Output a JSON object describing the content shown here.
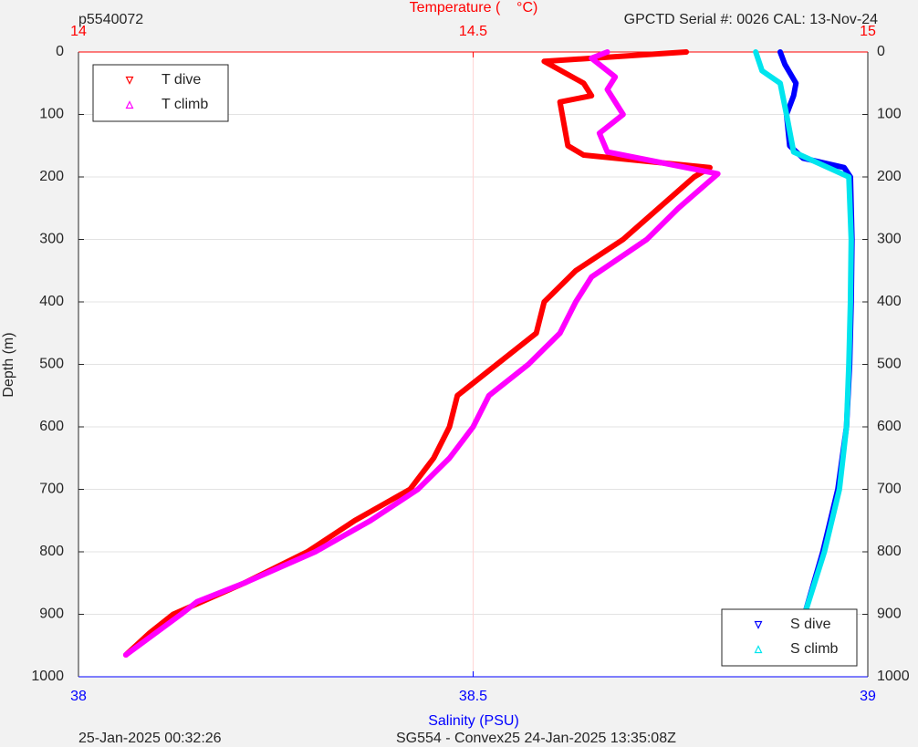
{
  "chart_data": {
    "type": "line",
    "title_left": "p5540072",
    "title_right": "GPCTD Serial #: 0026 CAL: 13-Nov-24",
    "xlabel_top": "Temperature (    °C)",
    "xlabel_bottom": "Salinity (PSU)",
    "ylabel": "Depth (m)",
    "footer_left": "25-Jan-2025 00:32:26",
    "footer_right": "SG554 - Convex25 24-Jan-2025 13:35:08Z",
    "ylim": [
      0,
      1000
    ],
    "y_reversed": true,
    "yticks": [
      0,
      100,
      200,
      300,
      400,
      500,
      600,
      700,
      800,
      900,
      1000
    ],
    "xlim": [
      14,
      15
    ],
    "xticks": [
      14,
      14.5,
      15
    ],
    "x_color": "#ff0000",
    "x2lim": [
      38,
      39
    ],
    "x2ticks": [
      38,
      38.5,
      39
    ],
    "x2_color": "#0000ff",
    "grid": true,
    "series": [
      {
        "name": "T dive",
        "color": "#ff0000",
        "marker": "down",
        "axis": "x",
        "legend": "top-left",
        "x": [
          14.77,
          14.59,
          14.64,
          14.65,
          14.61,
          14.62,
          14.64,
          14.8,
          14.78,
          14.69,
          14.63,
          14.59,
          14.58,
          14.53,
          14.48,
          14.47,
          14.45,
          14.42,
          14.35,
          14.29,
          14.21,
          14.12,
          14.09,
          14.06
        ],
        "y": [
          0,
          15,
          50,
          70,
          80,
          150,
          165,
          185,
          200,
          300,
          350,
          400,
          450,
          500,
          550,
          600,
          650,
          700,
          750,
          800,
          850,
          900,
          930,
          965
        ]
      },
      {
        "name": "T climb",
        "color": "#ff00ff",
        "marker": "up",
        "axis": "x",
        "legend": "top-left",
        "x": [
          14.67,
          14.65,
          14.68,
          14.67,
          14.69,
          14.66,
          14.67,
          14.73,
          14.81,
          14.76,
          14.72,
          14.65,
          14.63,
          14.61,
          14.57,
          14.52,
          14.5,
          14.47,
          14.43,
          14.37,
          14.3,
          14.21,
          14.15,
          14.13,
          14.06
        ],
        "y": [
          0,
          10,
          40,
          60,
          100,
          130,
          160,
          175,
          195,
          250,
          300,
          360,
          400,
          450,
          500,
          550,
          600,
          650,
          700,
          750,
          800,
          850,
          880,
          900,
          965
        ]
      },
      {
        "name": "S dive",
        "color": "#0000ff",
        "marker": "down",
        "axis": "x2",
        "legend": "bottom-right",
        "x": [
          38.889,
          38.895,
          38.909,
          38.906,
          38.897,
          38.901,
          38.918,
          38.97,
          38.978,
          38.98,
          38.979,
          38.977,
          38.973,
          38.962,
          38.943,
          38.92,
          38.909
        ],
        "y": [
          0,
          20,
          50,
          70,
          100,
          150,
          170,
          185,
          200,
          300,
          400,
          500,
          600,
          700,
          800,
          900,
          965
        ]
      },
      {
        "name": "S climb",
        "color": "#00e5ee",
        "marker": "up",
        "axis": "x2",
        "legend": "bottom-right",
        "x": [
          38.858,
          38.866,
          38.889,
          38.897,
          38.906,
          38.941,
          38.976,
          38.979,
          38.978,
          38.976,
          38.973,
          38.964,
          38.945,
          38.92,
          38.911
        ],
        "y": [
          0,
          30,
          50,
          100,
          160,
          180,
          200,
          300,
          400,
          500,
          600,
          700,
          800,
          900,
          965
        ]
      }
    ]
  }
}
